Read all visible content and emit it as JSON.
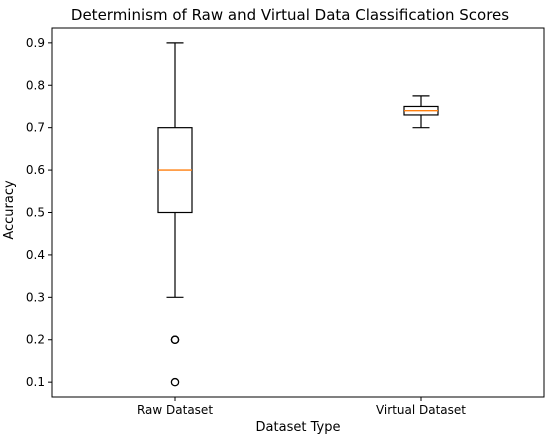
{
  "chart_data": {
    "type": "boxplot",
    "title": "Determinism of Raw  and Virtual Data Classification Scores",
    "xlabel": "Dataset Type",
    "ylabel": "Accuracy",
    "ylim": [
      0.065,
      0.935
    ],
    "yticks": [
      "0.1",
      "0.2",
      "0.3",
      "0.4",
      "0.5",
      "0.6",
      "0.7",
      "0.8",
      "0.9"
    ],
    "grid": false,
    "colors": {
      "box": "#000000",
      "median": "#ff7f0e",
      "background": "#ffffff"
    },
    "categories": [
      "Raw Dataset",
      "Virtual Dataset"
    ],
    "boxes": [
      {
        "category": "Raw Dataset",
        "whisker_low": 0.3,
        "q1": 0.5,
        "median": 0.6,
        "q3": 0.7,
        "whisker_high": 0.9,
        "outliers": [
          0.2,
          0.2,
          0.1
        ]
      },
      {
        "category": "Virtual Dataset",
        "whisker_low": 0.7,
        "q1": 0.73,
        "median": 0.74,
        "q3": 0.75,
        "whisker_high": 0.775,
        "outliers": []
      }
    ]
  }
}
